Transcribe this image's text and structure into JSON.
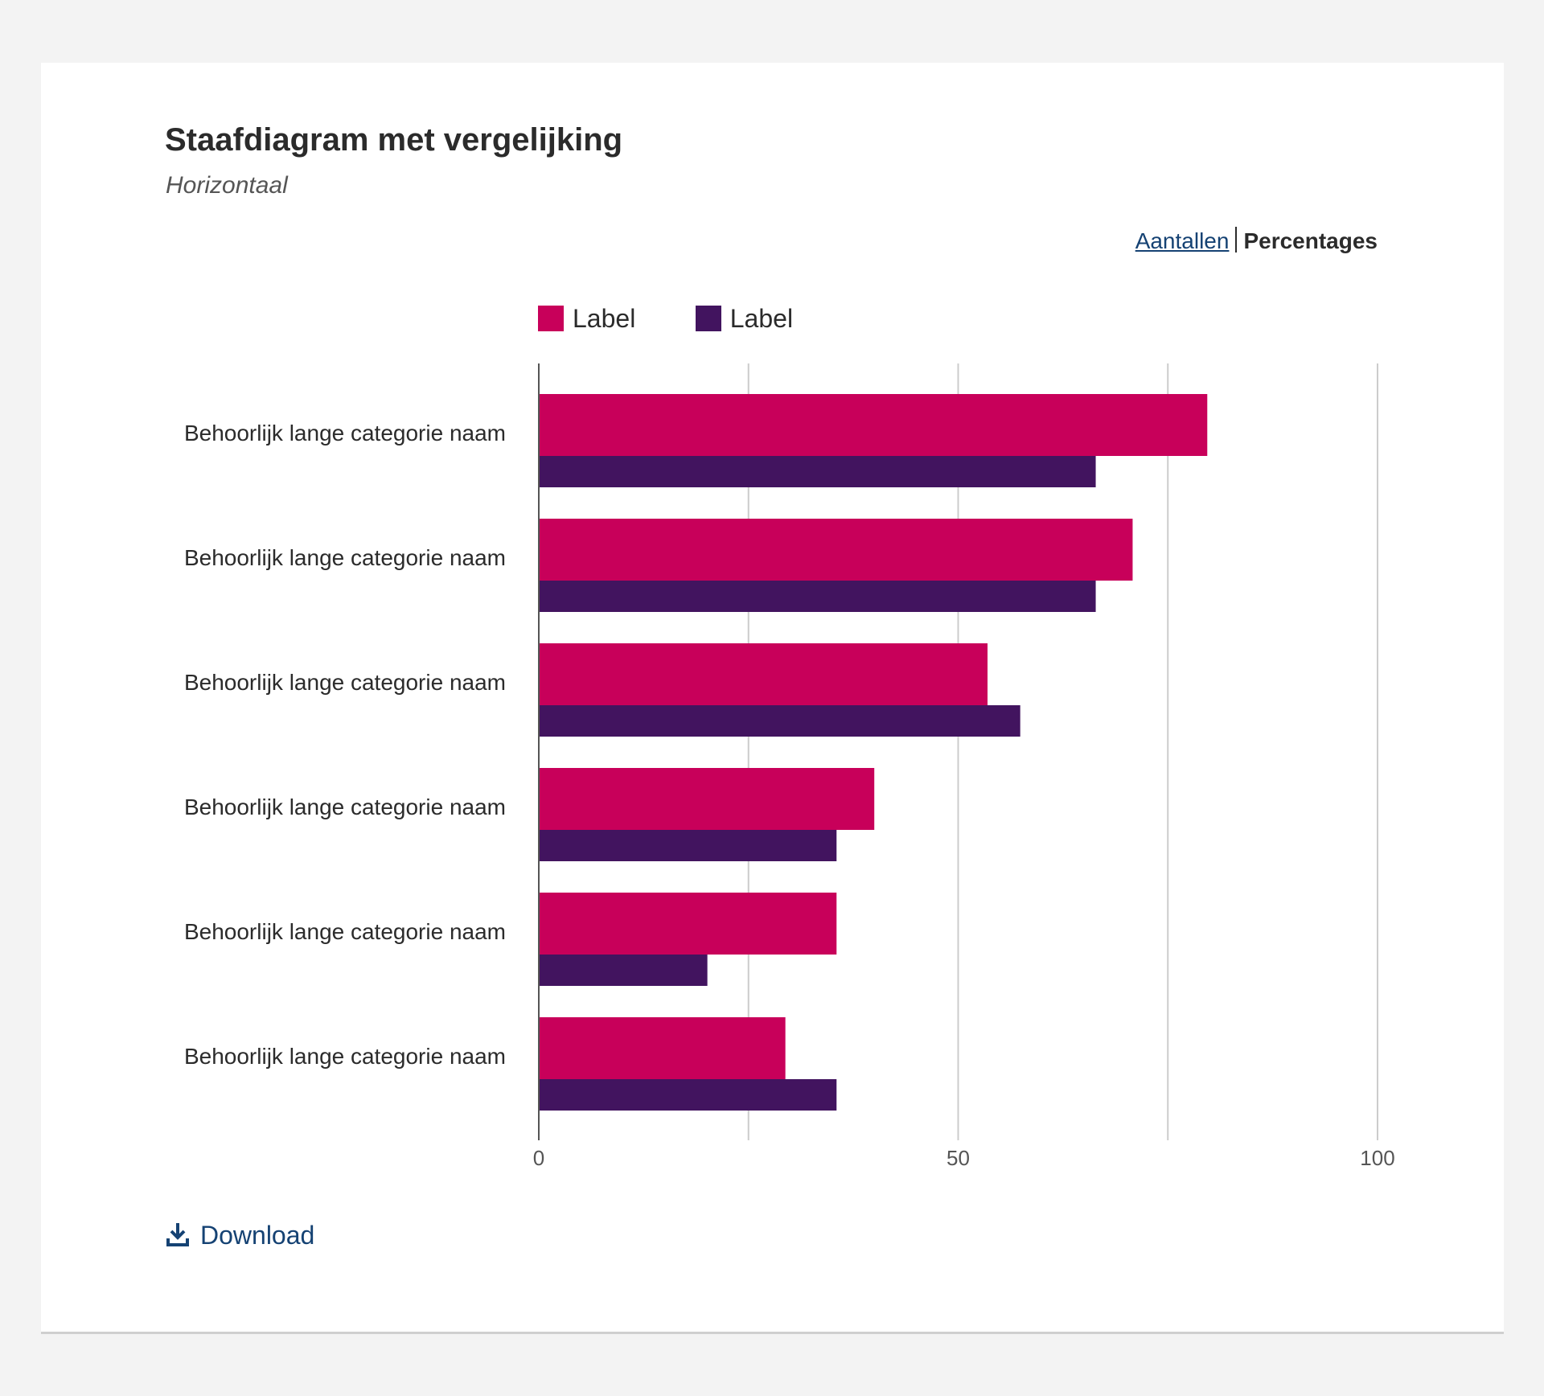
{
  "header": {
    "title": "Staafdiagram met vergelijking",
    "subtitle": "Horizontaal"
  },
  "toggle": {
    "counts_label": "Aantallen",
    "percentages_label": "Percentages",
    "active": "Percentages"
  },
  "download": {
    "label": "Download",
    "icon": "download-icon"
  },
  "colors": {
    "series1": "#c8005a",
    "series2": "#42145f",
    "link": "#154273",
    "grid": "#cccccc"
  },
  "chart_data": {
    "type": "bar",
    "orientation": "horizontal",
    "categories": [
      "Behoorlijk lange categorie naam",
      "Behoorlijk lange categorie naam",
      "Behoorlijk lange categorie naam",
      "Behoorlijk lange categorie naam",
      "Behoorlijk lange categorie naam",
      "Behoorlijk lange categorie naam"
    ],
    "series": [
      {
        "name": "Label",
        "values": [
          79.7,
          70.8,
          53.5,
          40.0,
          35.5,
          29.4
        ]
      },
      {
        "name": "Label",
        "values": [
          66.4,
          66.4,
          57.4,
          35.5,
          20.1,
          35.5
        ]
      }
    ],
    "xlim": [
      0,
      100
    ],
    "xticks": [
      0,
      50,
      100
    ],
    "grid": true,
    "legend": "top"
  }
}
